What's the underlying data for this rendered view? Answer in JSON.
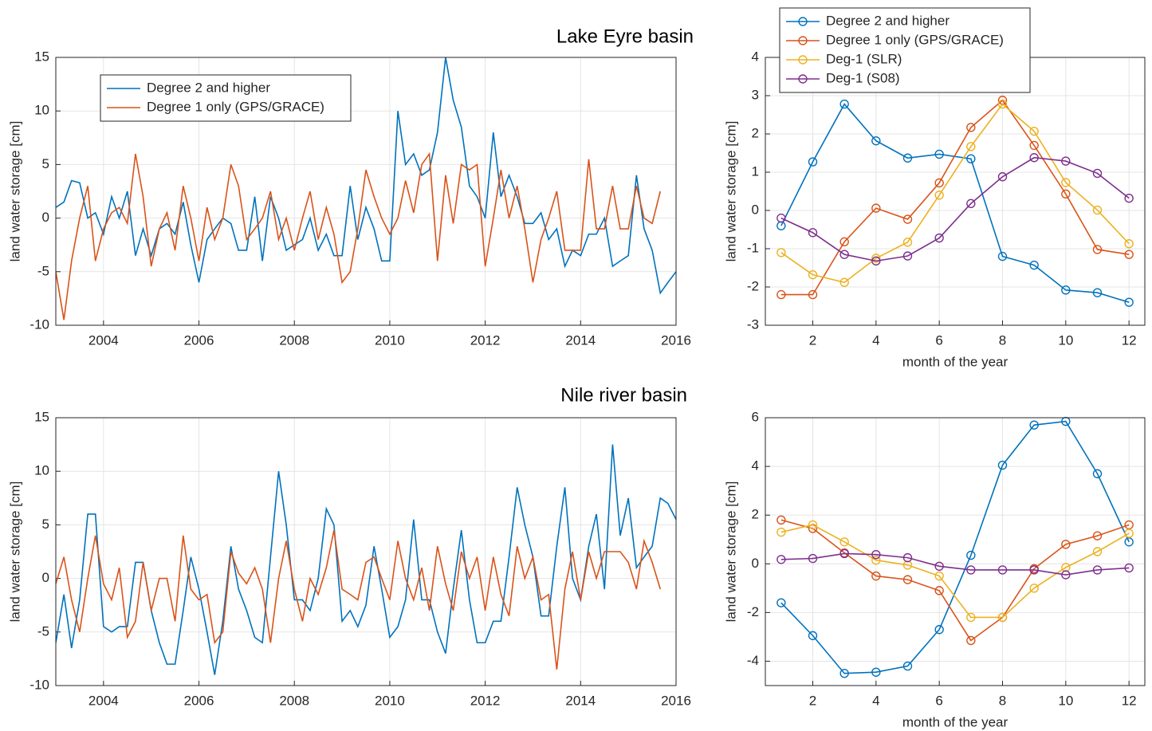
{
  "chart_data": [
    {
      "type": "line",
      "title": "Lake Eyre basin",
      "ylabel": "land water storage [cm]",
      "xlim": [
        2003,
        2016
      ],
      "xticks": [
        2004,
        2006,
        2008,
        2010,
        2012,
        2014,
        2016
      ],
      "ylim": [
        -10,
        15
      ],
      "yticks": [
        -10,
        -5,
        0,
        5,
        10,
        15
      ],
      "grid": true,
      "legend": "upper left",
      "x": [
        2003,
        2003.17,
        2003.33,
        2003.5,
        2003.67,
        2003.83,
        2004,
        2004.17,
        2004.33,
        2004.5,
        2004.67,
        2004.83,
        2005,
        2005.17,
        2005.33,
        2005.5,
        2005.67,
        2005.83,
        2006,
        2006.17,
        2006.33,
        2006.5,
        2006.67,
        2006.83,
        2007,
        2007.17,
        2007.33,
        2007.5,
        2007.67,
        2007.83,
        2008,
        2008.17,
        2008.33,
        2008.5,
        2008.67,
        2008.83,
        2009,
        2009.17,
        2009.33,
        2009.5,
        2009.67,
        2009.83,
        2010,
        2010.17,
        2010.33,
        2010.5,
        2010.67,
        2010.83,
        2011,
        2011.17,
        2011.33,
        2011.5,
        2011.67,
        2011.83,
        2012,
        2012.17,
        2012.33,
        2012.5,
        2012.67,
        2012.83,
        2013,
        2013.17,
        2013.33,
        2013.5,
        2013.67,
        2013.83,
        2014,
        2014.17,
        2014.33,
        2014.5,
        2014.67,
        2014.83,
        2015,
        2015.17,
        2015.33,
        2015.5,
        2015.67,
        2015.83,
        2016
      ],
      "series": [
        {
          "name": "Degree 2 and higher",
          "color": "#0072bd",
          "values": [
            1,
            1.5,
            3.5,
            3.3,
            0,
            0.5,
            -1.5,
            2,
            0,
            2.5,
            -3.5,
            -1,
            -3.5,
            -1,
            -0.5,
            -1.5,
            1.5,
            -2.5,
            -6,
            -2,
            -1,
            0,
            -0.5,
            -3,
            -3,
            2,
            -4,
            2,
            0,
            -3,
            -2.5,
            -2,
            0,
            -3,
            -1.5,
            -3.5,
            -3.5,
            3,
            -2,
            1,
            -1,
            -4,
            -4,
            10,
            5,
            6,
            4,
            4.5,
            8,
            15,
            11,
            8.5,
            3,
            2,
            0,
            8,
            2,
            4,
            2,
            -0.5,
            -0.5,
            0.5,
            -2,
            -1,
            -4.5,
            -3,
            -3.5,
            -1.5,
            -1.5,
            0,
            -4.5,
            -4,
            -3.5,
            4,
            -1,
            -3,
            -7,
            -6,
            -5
          ]
        },
        {
          "name": "Degree 1 only (GPS/GRACE)",
          "color": "#d95319",
          "values": [
            -5,
            -9.5,
            -4,
            0,
            3,
            -4,
            -1,
            0.5,
            1,
            -0.5,
            6,
            2,
            -4.5,
            -1,
            0.5,
            -3,
            3,
            0,
            -4,
            1,
            -2,
            0,
            5,
            3,
            -2,
            -1,
            0,
            2.5,
            -2,
            0,
            -3,
            0,
            2.5,
            -2,
            1,
            -1.5,
            -6,
            -5,
            -1,
            4.5,
            2,
            0,
            -1.5,
            0,
            3.5,
            0.5,
            5,
            6,
            -4,
            4,
            -0.5,
            5,
            4.5,
            5,
            -4.5,
            0,
            4.5,
            0,
            3,
            -1,
            -6,
            -2,
            0,
            2.5,
            -3,
            -3,
            -3,
            5.5,
            -1,
            -1,
            3,
            -1,
            -1,
            3,
            0,
            -0.5,
            2.5,
            null,
            null
          ]
        }
      ]
    },
    {
      "type": "line",
      "ylabel": "land water storage [cm]",
      "xlabel": "month of the year",
      "xlim": [
        0.5,
        12.5
      ],
      "xticks": [
        2,
        4,
        6,
        8,
        10,
        12
      ],
      "ylim": [
        -3,
        4
      ],
      "yticks": [
        -3,
        -2,
        -1,
        0,
        1,
        2,
        3,
        4
      ],
      "grid": true,
      "marker": "circle",
      "legend": "top",
      "x": [
        1,
        2,
        3,
        4,
        5,
        6,
        7,
        8,
        9,
        10,
        11,
        12
      ],
      "series": [
        {
          "name": "Degree 2 and higher",
          "color": "#0072bd",
          "values": [
            -0.4,
            1.27,
            2.78,
            1.82,
            1.37,
            1.47,
            1.35,
            -1.2,
            -1.43,
            -2.08,
            -2.15,
            -2.4
          ]
        },
        {
          "name": "Degree 1 only (GPS/GRACE)",
          "color": "#d95319",
          "values": [
            -2.2,
            -2.2,
            -0.82,
            0.06,
            -0.23,
            0.72,
            2.17,
            2.88,
            1.7,
            0.43,
            -1.02,
            -1.15
          ]
        },
        {
          "name": "Deg-1 (SLR)",
          "color": "#edb120",
          "values": [
            -1.1,
            -1.68,
            -1.88,
            -1.25,
            -0.83,
            0.4,
            1.67,
            2.78,
            2.07,
            0.73,
            0.01,
            -0.87
          ]
        },
        {
          "name": "Deg-1 (S08)",
          "color": "#7e2f8e",
          "values": [
            -0.2,
            -0.58,
            -1.15,
            -1.32,
            -1.19,
            -0.72,
            0.18,
            0.88,
            1.38,
            1.29,
            0.97,
            0.32
          ]
        }
      ]
    },
    {
      "type": "line",
      "title": "Nile river basin",
      "ylabel": "land water storage [cm]",
      "xlim": [
        2003,
        2016
      ],
      "xticks": [
        2004,
        2006,
        2008,
        2010,
        2012,
        2014,
        2016
      ],
      "ylim": [
        -10,
        15
      ],
      "yticks": [
        -10,
        -5,
        0,
        5,
        10,
        15
      ],
      "grid": true,
      "x": [
        2003,
        2003.17,
        2003.33,
        2003.5,
        2003.67,
        2003.83,
        2004,
        2004.17,
        2004.33,
        2004.5,
        2004.67,
        2004.83,
        2005,
        2005.17,
        2005.33,
        2005.5,
        2005.67,
        2005.83,
        2006,
        2006.17,
        2006.33,
        2006.5,
        2006.67,
        2006.83,
        2007,
        2007.17,
        2007.33,
        2007.5,
        2007.67,
        2007.83,
        2008,
        2008.17,
        2008.33,
        2008.5,
        2008.67,
        2008.83,
        2009,
        2009.17,
        2009.33,
        2009.5,
        2009.67,
        2009.83,
        2010,
        2010.17,
        2010.33,
        2010.5,
        2010.67,
        2010.83,
        2011,
        2011.17,
        2011.33,
        2011.5,
        2011.67,
        2011.83,
        2012,
        2012.17,
        2012.33,
        2012.5,
        2012.67,
        2012.83,
        2013,
        2013.17,
        2013.33,
        2013.5,
        2013.67,
        2013.83,
        2014,
        2014.17,
        2014.33,
        2014.5,
        2014.67,
        2014.83,
        2015,
        2015.17,
        2015.33,
        2015.5,
        2015.67,
        2015.83,
        2016
      ],
      "series": [
        {
          "color": "#0072bd",
          "values": [
            -6,
            -1.5,
            -6.5,
            -2,
            6,
            6,
            -4.5,
            -5,
            -4.5,
            -4.5,
            1.5,
            1.5,
            -3,
            -6,
            -8,
            -8,
            -3,
            2,
            -1,
            -5,
            -9,
            -4,
            3,
            -1,
            -3,
            -5.5,
            -6,
            2,
            10,
            5,
            -2,
            -2,
            -3,
            0,
            6.5,
            5,
            -4,
            -3,
            -4.5,
            -2.5,
            3,
            -1,
            -5.5,
            -4.5,
            -2,
            5.5,
            -2,
            -2,
            -5,
            -7,
            -1,
            4.5,
            -2,
            -6,
            -6,
            -4,
            -4,
            2,
            8.5,
            5,
            2,
            -3.5,
            -3.5,
            3,
            8.5,
            0,
            -2,
            3,
            6,
            -1,
            12.5,
            4,
            7.5,
            1,
            2,
            3,
            7.5,
            7,
            5.5
          ]
        },
        {
          "color": "#d95319",
          "values": [
            -0.5,
            2,
            -2,
            -5,
            0,
            4,
            -0.5,
            -2,
            1,
            -5.5,
            -4,
            1.5,
            -3,
            0,
            0,
            -4,
            4,
            -1,
            -2,
            -1.5,
            -6,
            -5,
            2.5,
            0.5,
            -0.5,
            1,
            -1,
            -6,
            0,
            3.5,
            -1,
            -4,
            0,
            -1.5,
            1,
            4.5,
            -1,
            -1.5,
            -2,
            1.5,
            2,
            0,
            -2,
            3.5,
            0,
            -2,
            1,
            -3,
            3,
            -0.5,
            -3,
            2.5,
            0,
            2,
            -3,
            2,
            -1.5,
            -3.5,
            3,
            0,
            2,
            -2,
            -1.5,
            -8.5,
            -1,
            2.5,
            -2,
            2.5,
            0,
            2.5,
            2.5,
            2.5,
            1.5,
            -1,
            3.5,
            1.5,
            -1,
            null,
            null
          ]
        }
      ]
    },
    {
      "type": "line",
      "ylabel": "land water storage [cm]",
      "xlabel": "month of the year",
      "xlim": [
        0.5,
        12.5
      ],
      "xticks": [
        2,
        4,
        6,
        8,
        10,
        12
      ],
      "ylim": [
        -5,
        6
      ],
      "yticks": [
        -4,
        -2,
        0,
        2,
        4,
        6
      ],
      "grid": true,
      "marker": "circle",
      "x": [
        1,
        2,
        3,
        4,
        5,
        6,
        7,
        8,
        9,
        10,
        11,
        12
      ],
      "series": [
        {
          "color": "#0072bd",
          "values": [
            -1.6,
            -2.95,
            -4.5,
            -4.45,
            -4.2,
            -2.7,
            0.35,
            4.05,
            5.7,
            5.85,
            3.7,
            0.9
          ]
        },
        {
          "color": "#d95319",
          "values": [
            1.8,
            1.45,
            0.45,
            -0.5,
            -0.65,
            -1.1,
            -3.15,
            -2.2,
            -0.2,
            0.8,
            1.15,
            1.6
          ]
        },
        {
          "color": "#edb120",
          "values": [
            1.3,
            1.6,
            0.9,
            0.15,
            -0.05,
            -0.5,
            -2.2,
            -2.2,
            -1.0,
            -0.15,
            0.5,
            1.25
          ]
        },
        {
          "color": "#7e2f8e",
          "values": [
            0.18,
            0.22,
            0.42,
            0.38,
            0.25,
            -0.1,
            -0.25,
            -0.25,
            -0.25,
            -0.45,
            -0.25,
            -0.17
          ]
        }
      ]
    }
  ]
}
